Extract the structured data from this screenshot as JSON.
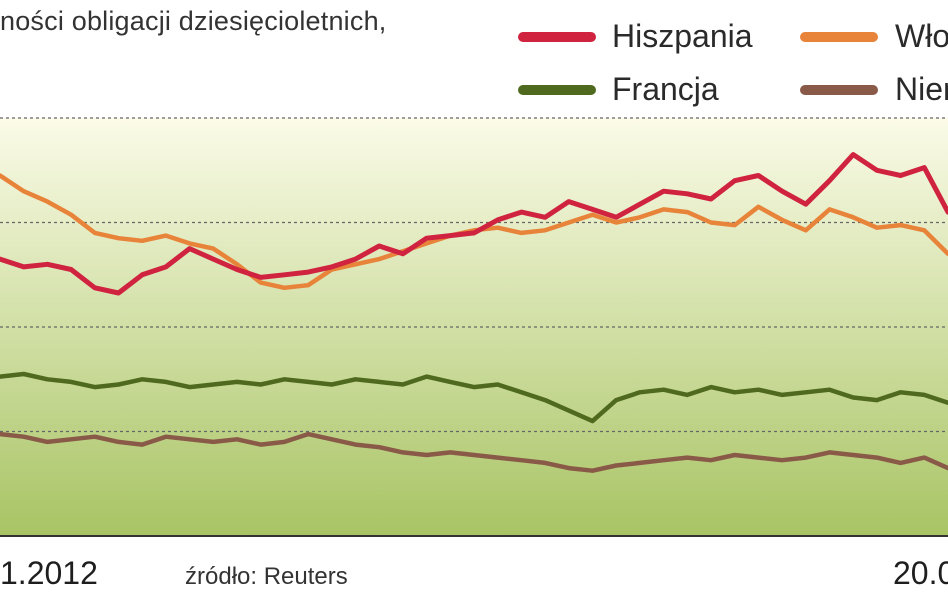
{
  "title": "ności obligacji dziesięcioletnich,",
  "source": "źródło: Reuters",
  "x_label_start": "1.2012",
  "x_label_end": "20.0",
  "colors": {
    "Hiszpania": "#d0233f",
    "Włochy": "#e8833a",
    "Francja": "#4f6a1e",
    "Niemcy": "#8a5a48",
    "area_top": "#fbfbe8",
    "area_bottom": "#a8c464",
    "grid": "#666666"
  },
  "legend": [
    {
      "name": "Hiszpania",
      "label": "Hiszpania"
    },
    {
      "name": "Włochy",
      "label": "Włoch"
    },
    {
      "name": "Francja",
      "label": "Francja"
    },
    {
      "name": "Niemcy",
      "label": "Niem"
    }
  ],
  "chart_data": {
    "type": "line",
    "title": "",
    "xlabel": "",
    "ylabel": "",
    "x_range": [
      0,
      160
    ],
    "ylim": [
      0,
      8
    ],
    "gridlines_y": [
      2,
      4,
      6,
      8
    ],
    "grid": true,
    "legend_position": "top-right",
    "series": [
      {
        "name": "Hiszpania",
        "x": [
          0,
          4,
          8,
          12,
          16,
          20,
          24,
          28,
          32,
          36,
          40,
          44,
          48,
          52,
          56,
          60,
          64,
          68,
          72,
          76,
          80,
          84,
          88,
          92,
          96,
          100,
          104,
          108,
          112,
          116,
          120,
          124,
          128,
          132,
          136,
          140,
          144,
          148,
          152,
          156,
          160
        ],
        "values": [
          5.3,
          5.15,
          5.2,
          5.1,
          4.75,
          4.65,
          5.0,
          5.15,
          5.5,
          5.3,
          5.1,
          4.95,
          5.0,
          5.05,
          5.15,
          5.3,
          5.55,
          5.4,
          5.7,
          5.75,
          5.8,
          6.05,
          6.2,
          6.1,
          6.4,
          6.25,
          6.1,
          6.35,
          6.6,
          6.55,
          6.45,
          6.8,
          6.9,
          6.6,
          6.35,
          6.8,
          7.3,
          7.0,
          6.9,
          7.05,
          6.2
        ]
      },
      {
        "name": "Włochy",
        "x": [
          0,
          4,
          8,
          12,
          16,
          20,
          24,
          28,
          32,
          36,
          40,
          44,
          48,
          52,
          56,
          60,
          64,
          68,
          72,
          76,
          80,
          84,
          88,
          92,
          96,
          100,
          104,
          108,
          112,
          116,
          120,
          124,
          128,
          132,
          136,
          140,
          144,
          148,
          152,
          156,
          160
        ],
        "values": [
          6.9,
          6.6,
          6.4,
          6.15,
          5.8,
          5.7,
          5.65,
          5.75,
          5.6,
          5.5,
          5.2,
          4.85,
          4.75,
          4.8,
          5.1,
          5.2,
          5.3,
          5.45,
          5.6,
          5.75,
          5.85,
          5.9,
          5.8,
          5.85,
          6.0,
          6.15,
          6.0,
          6.1,
          6.25,
          6.2,
          6.0,
          5.95,
          6.3,
          6.05,
          5.85,
          6.25,
          6.1,
          5.9,
          5.95,
          5.85,
          5.4
        ]
      },
      {
        "name": "Francja",
        "x": [
          0,
          4,
          8,
          12,
          16,
          20,
          24,
          28,
          32,
          36,
          40,
          44,
          48,
          52,
          56,
          60,
          64,
          68,
          72,
          76,
          80,
          84,
          88,
          92,
          96,
          100,
          104,
          108,
          112,
          116,
          120,
          124,
          128,
          132,
          136,
          140,
          144,
          148,
          152,
          156,
          160
        ],
        "values": [
          3.05,
          3.1,
          3.0,
          2.95,
          2.85,
          2.9,
          3.0,
          2.95,
          2.85,
          2.9,
          2.95,
          2.9,
          3.0,
          2.95,
          2.9,
          3.0,
          2.95,
          2.9,
          3.05,
          2.95,
          2.85,
          2.9,
          2.75,
          2.6,
          2.4,
          2.2,
          2.6,
          2.75,
          2.8,
          2.7,
          2.85,
          2.75,
          2.8,
          2.7,
          2.75,
          2.8,
          2.65,
          2.6,
          2.75,
          2.7,
          2.55
        ]
      },
      {
        "name": "Niemcy",
        "x": [
          0,
          4,
          8,
          12,
          16,
          20,
          24,
          28,
          32,
          36,
          40,
          44,
          48,
          52,
          56,
          60,
          64,
          68,
          72,
          76,
          80,
          84,
          88,
          92,
          96,
          100,
          104,
          108,
          112,
          116,
          120,
          124,
          128,
          132,
          136,
          140,
          144,
          148,
          152,
          156,
          160
        ],
        "values": [
          1.95,
          1.9,
          1.8,
          1.85,
          1.9,
          1.8,
          1.75,
          1.9,
          1.85,
          1.8,
          1.85,
          1.75,
          1.8,
          1.95,
          1.85,
          1.75,
          1.7,
          1.6,
          1.55,
          1.6,
          1.55,
          1.5,
          1.45,
          1.4,
          1.3,
          1.25,
          1.35,
          1.4,
          1.45,
          1.5,
          1.45,
          1.55,
          1.5,
          1.45,
          1.5,
          1.6,
          1.55,
          1.5,
          1.4,
          1.5,
          1.3
        ]
      }
    ]
  }
}
